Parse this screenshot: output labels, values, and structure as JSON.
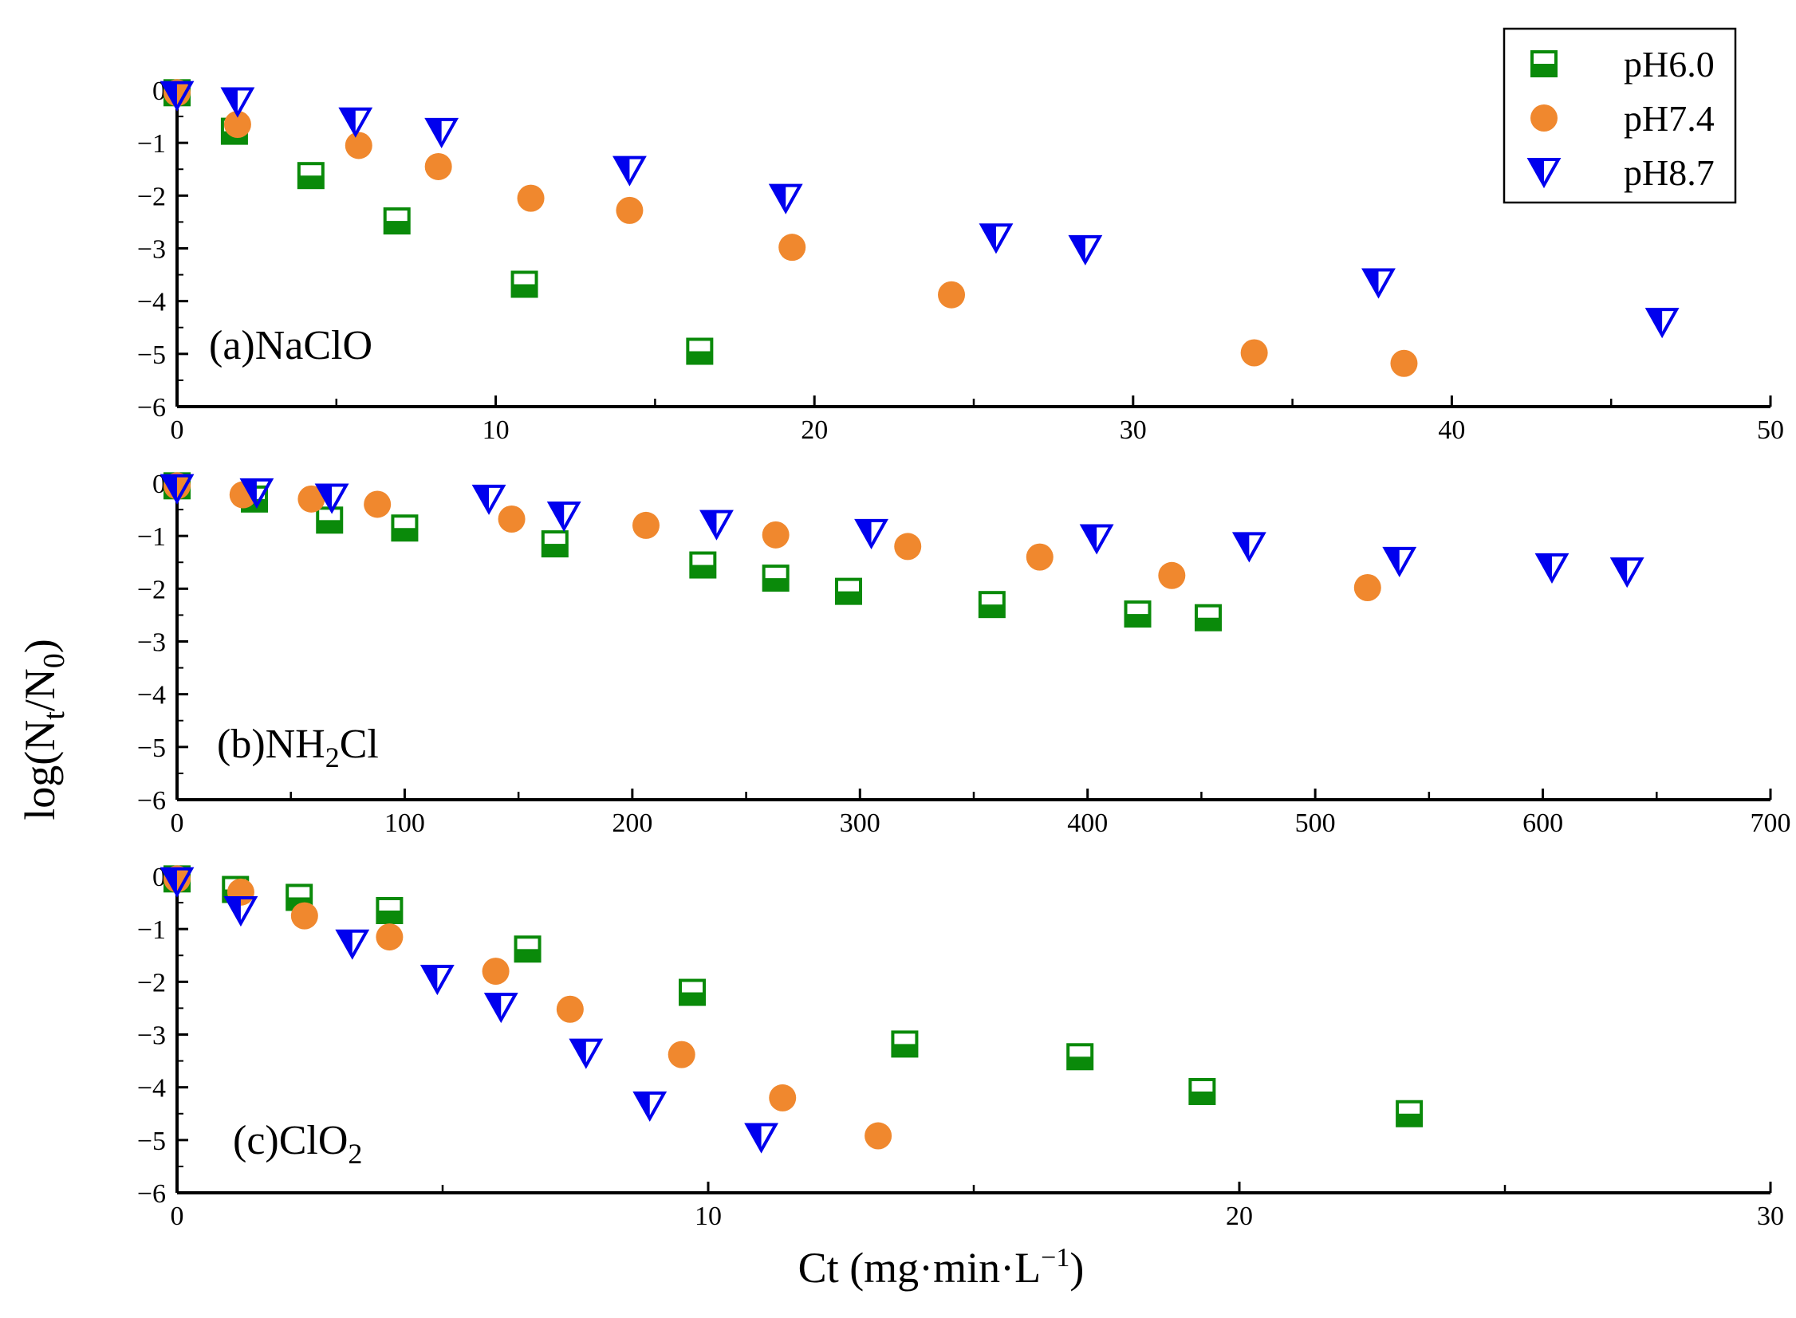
{
  "colors": {
    "pH6.0": "#0a8a0a",
    "pH7.4": "#f0882e",
    "pH8.7": "#0000ee",
    "axis": "#000000",
    "background": "#ffffff"
  },
  "figure": {
    "ylabel_main": "log(N",
    "ylabel_sub1": "t",
    "ylabel_mid": "/N",
    "ylabel_sub2": "0",
    "ylabel_end": ")",
    "xlabel_main": "Ct (mg·min·L",
    "xlabel_sup": "−1",
    "xlabel_end": ")"
  },
  "legend": {
    "items": [
      {
        "label": "pH6.0",
        "marker": "half-filled-square"
      },
      {
        "label": "pH7.4",
        "marker": "circle"
      },
      {
        "label": "pH8.7",
        "marker": "half-filled-down-triangle"
      }
    ]
  },
  "chart_data": [
    {
      "type": "scatter",
      "panel_label": "(a)NaClO",
      "panel_label_parts": {
        "main": "(a)NaClO",
        "sub": "",
        "tail": ""
      },
      "xlabel": "",
      "ylabel": "log(Nt/N0)",
      "xlim": [
        0,
        50
      ],
      "ylim": [
        -6,
        0
      ],
      "xticks": [
        0,
        10,
        20,
        30,
        40,
        50
      ],
      "xtick_labels": [
        "0",
        "10",
        "20",
        "30",
        "40",
        "50"
      ],
      "yticks": [
        0,
        -1,
        -2,
        -3,
        -4,
        -5,
        -6
      ],
      "ytick_labels": [
        "0",
        "−1",
        "−2",
        "−3",
        "−4",
        "−5",
        "−6"
      ],
      "series": [
        {
          "name": "pH6.0",
          "x": [
            0,
            1.8,
            4.2,
            6.9,
            10.9,
            16.4
          ],
          "y": [
            -0.05,
            -0.78,
            -1.62,
            -2.48,
            -3.68,
            -4.95
          ]
        },
        {
          "name": "pH7.4",
          "x": [
            0,
            1.9,
            5.7,
            8.2,
            11.1,
            14.2,
            19.3,
            24.3,
            33.8,
            38.5
          ],
          "y": [
            -0.05,
            -0.65,
            -1.05,
            -1.45,
            -2.05,
            -2.28,
            -2.98,
            -3.88,
            -4.98,
            -5.18
          ]
        },
        {
          "name": "pH8.7",
          "x": [
            0,
            1.9,
            5.6,
            8.3,
            14.2,
            19.1,
            25.7,
            28.5,
            37.7,
            46.6
          ],
          "y": [
            -0.1,
            -0.22,
            -0.6,
            -0.8,
            -1.52,
            -2.05,
            -2.8,
            -3.02,
            -3.65,
            -4.4
          ]
        }
      ]
    },
    {
      "type": "scatter",
      "panel_label": "(b)NH2Cl",
      "panel_label_parts": {
        "main": "(b)NH",
        "sub": "2",
        "tail": "Cl"
      },
      "xlabel": "",
      "ylabel": "log(Nt/N0)",
      "xlim": [
        0,
        700
      ],
      "ylim": [
        -6,
        0
      ],
      "xticks": [
        0,
        100,
        200,
        300,
        400,
        500,
        600,
        700
      ],
      "xtick_labels": [
        "0",
        "100",
        "200",
        "300",
        "400",
        "500",
        "600",
        "700"
      ],
      "yticks": [
        0,
        -1,
        -2,
        -3,
        -4,
        -5,
        -6
      ],
      "ytick_labels": [
        "0",
        "−1",
        "−2",
        "−3",
        "−4",
        "−5",
        "−6"
      ],
      "series": [
        {
          "name": "pH6.0",
          "x": [
            0,
            34,
            67,
            100,
            166,
            231,
            263,
            295,
            358,
            422,
            453
          ],
          "y": [
            -0.05,
            -0.3,
            -0.7,
            -0.85,
            -1.15,
            -1.55,
            -1.8,
            -2.05,
            -2.3,
            -2.48,
            -2.55
          ]
        },
        {
          "name": "pH7.4",
          "x": [
            0,
            29,
            59,
            88,
            147,
            206,
            263,
            321,
            379,
            437,
            523
          ],
          "y": [
            -0.05,
            -0.22,
            -0.3,
            -0.4,
            -0.68,
            -0.8,
            -0.98,
            -1.2,
            -1.4,
            -1.75,
            -1.98
          ]
        },
        {
          "name": "pH8.7",
          "x": [
            0,
            35,
            68,
            137,
            170,
            237,
            305,
            404,
            471,
            537,
            604,
            637
          ],
          "y": [
            -0.1,
            -0.18,
            -0.28,
            -0.3,
            -0.62,
            -0.78,
            -0.95,
            -1.05,
            -1.2,
            -1.48,
            -1.6,
            -1.68
          ]
        }
      ]
    },
    {
      "type": "scatter",
      "panel_label": "(c)ClO2",
      "panel_label_parts": {
        "main": "(c)ClO",
        "sub": "2",
        "tail": ""
      },
      "xlabel": "Ct (mg·min·L−1)",
      "ylabel": "log(Nt/N0)",
      "xlim": [
        0,
        30
      ],
      "ylim": [
        -6,
        0
      ],
      "xticks": [
        0,
        10,
        20,
        30
      ],
      "xtick_labels": [
        "0",
        "10",
        "20",
        "30"
      ],
      "minor_xticks": [
        5,
        15,
        25
      ],
      "yticks": [
        0,
        -1,
        -2,
        -3,
        -4,
        -5,
        -6
      ],
      "ytick_labels": [
        "0",
        "−1",
        "−2",
        "−3",
        "−4",
        "−5",
        "−6"
      ],
      "series": [
        {
          "name": "pH6.0",
          "x": [
            0,
            1.1,
            2.3,
            4.0,
            6.6,
            9.7,
            13.7,
            17.0,
            19.3,
            23.2
          ],
          "y": [
            -0.05,
            -0.25,
            -0.4,
            -0.65,
            -1.38,
            -2.2,
            -3.18,
            -3.42,
            -4.08,
            -4.5
          ]
        },
        {
          "name": "pH7.4",
          "x": [
            0,
            1.2,
            2.4,
            4.0,
            6.0,
            7.4,
            9.5,
            11.4,
            13.2
          ],
          "y": [
            -0.05,
            -0.3,
            -0.75,
            -1.15,
            -1.8,
            -2.52,
            -3.38,
            -4.2,
            -4.92
          ]
        },
        {
          "name": "pH8.7",
          "x": [
            0,
            1.2,
            3.3,
            4.9,
            6.1,
            7.7,
            8.9,
            11.0
          ],
          "y": [
            -0.1,
            -0.65,
            -1.28,
            -1.95,
            -2.48,
            -3.35,
            -4.35,
            -4.95
          ]
        }
      ]
    }
  ]
}
